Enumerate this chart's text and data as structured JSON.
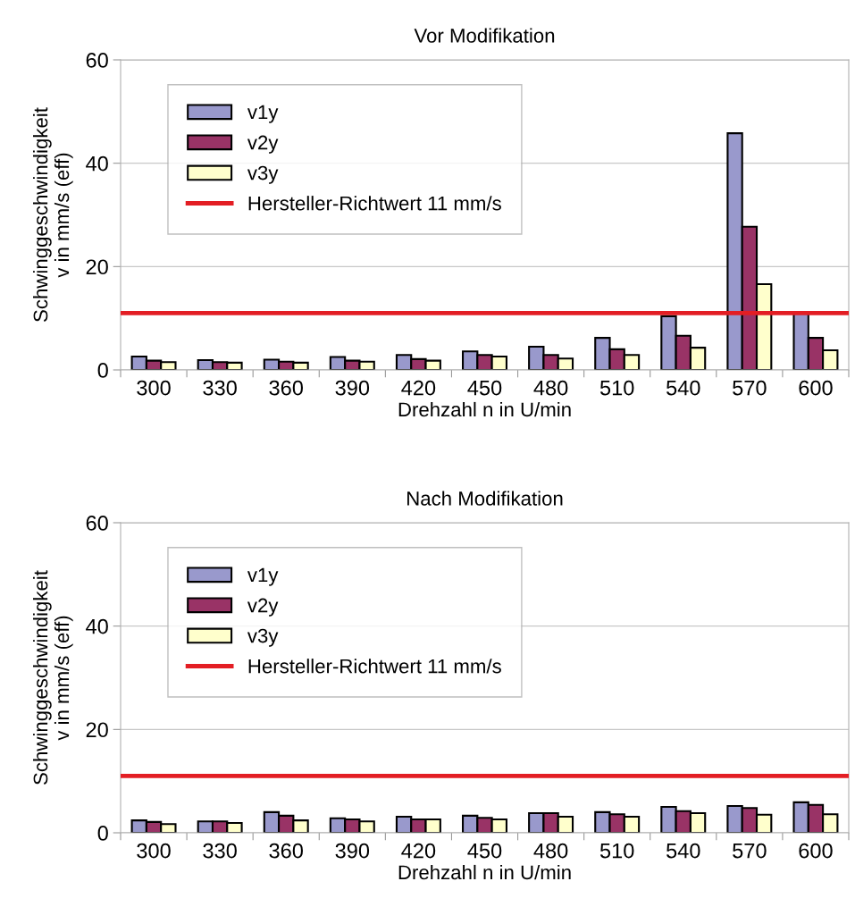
{
  "chart_data": [
    {
      "type": "bar",
      "title": "Vor Modifikation",
      "xlabel": "Drehzahl n in U/min",
      "ylabel": "Schwinggeschwindigkeit\nv in mm/s (eff)",
      "categories": [
        "300",
        "330",
        "360",
        "390",
        "420",
        "450",
        "480",
        "510",
        "540",
        "570",
        "600"
      ],
      "series": [
        {
          "name": "v1y",
          "color": "#9999cc",
          "values": [
            2.6,
            1.9,
            2.0,
            2.5,
            2.9,
            3.6,
            4.5,
            6.2,
            10.4,
            45.8,
            11.0
          ]
        },
        {
          "name": "v2y",
          "color": "#993366",
          "values": [
            1.8,
            1.5,
            1.6,
            1.8,
            2.1,
            2.9,
            2.9,
            4.0,
            6.6,
            27.7,
            6.2
          ]
        },
        {
          "name": "v3y",
          "color": "#ffffcc",
          "values": [
            1.5,
            1.4,
            1.4,
            1.6,
            1.8,
            2.6,
            2.2,
            2.9,
            4.3,
            16.6,
            3.8
          ]
        }
      ],
      "ref_lines": [
        {
          "axis": "y",
          "value": 11,
          "label": "Hersteller-Richtwert 11 mm/s",
          "color": "#e31e24"
        }
      ],
      "ylim": [
        0,
        60
      ],
      "yticks": [
        0,
        20,
        40,
        60
      ],
      "grid": "y",
      "legend": "top left"
    },
    {
      "type": "bar",
      "title": "Nach Modifikation",
      "xlabel": "Drehzahl n in U/min",
      "ylabel": "Schwinggeschwindigkeit\nv in mm/s (eff)",
      "categories": [
        "300",
        "330",
        "360",
        "390",
        "420",
        "450",
        "480",
        "510",
        "540",
        "570",
        "600"
      ],
      "series": [
        {
          "name": "v1y",
          "color": "#9999cc",
          "values": [
            2.4,
            2.2,
            4.0,
            2.8,
            3.1,
            3.3,
            3.8,
            4.0,
            5.0,
            5.2,
            5.9
          ]
        },
        {
          "name": "v2y",
          "color": "#993366",
          "values": [
            2.1,
            2.2,
            3.3,
            2.6,
            2.6,
            2.9,
            3.8,
            3.6,
            4.2,
            4.8,
            5.4
          ]
        },
        {
          "name": "v3y",
          "color": "#ffffcc",
          "values": [
            1.7,
            1.9,
            2.4,
            2.2,
            2.6,
            2.6,
            3.1,
            3.1,
            3.8,
            3.5,
            3.6
          ]
        }
      ],
      "ref_lines": [
        {
          "axis": "y",
          "value": 11,
          "label": "Hersteller-Richtwert 11 mm/s",
          "color": "#e31e24"
        }
      ],
      "ylim": [
        0,
        60
      ],
      "yticks": [
        0,
        20,
        40,
        60
      ],
      "grid": "y",
      "legend": "top left"
    }
  ]
}
